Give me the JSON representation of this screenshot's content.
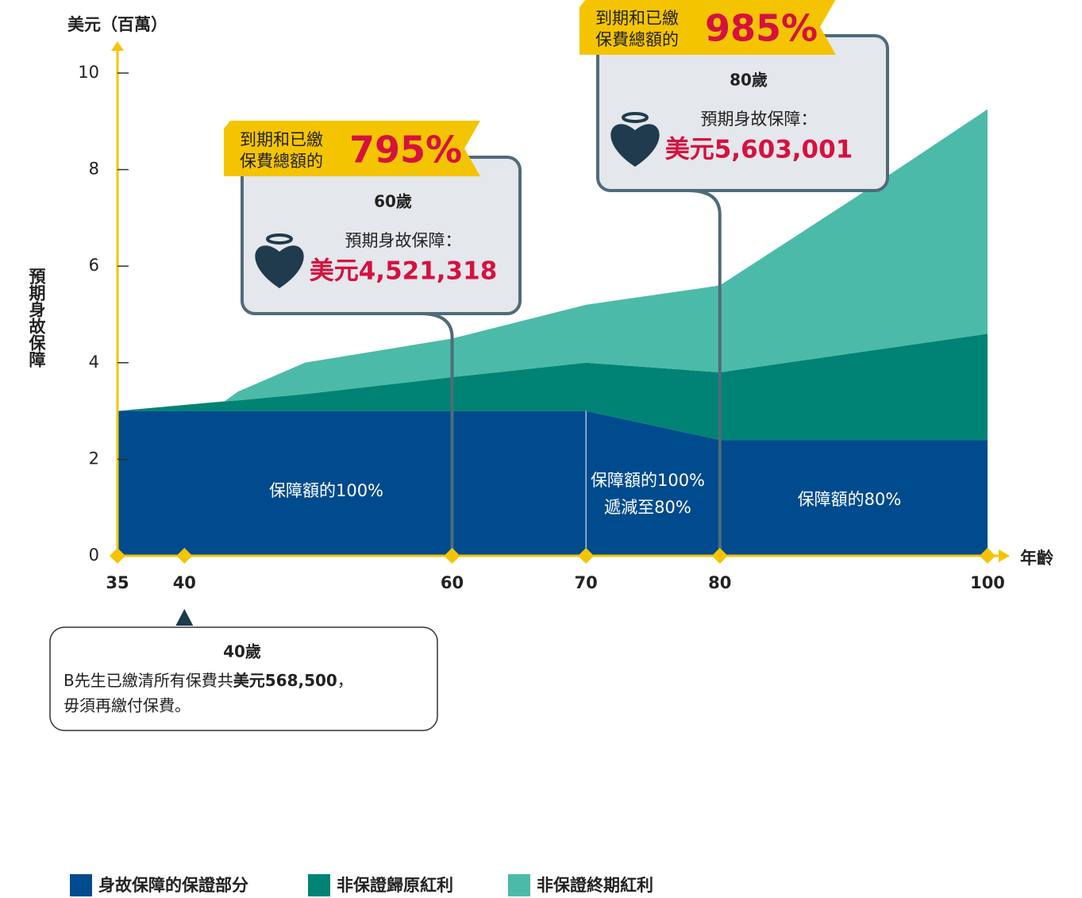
{
  "chart_data": {
    "type": "area",
    "stacked": true,
    "y_unit_label": "美元（百萬）",
    "ylabel": "預期身故保障",
    "xlabel": "年齡",
    "x": [
      35,
      43,
      44,
      49,
      60,
      70,
      80,
      90,
      100
    ],
    "series": [
      {
        "name": "身故保障的保證部分",
        "color": "#004b8d",
        "values": [
          3,
          3,
          3,
          3,
          3,
          3,
          2.4,
          2.4,
          2.4
        ]
      },
      {
        "name": "非保證歸原紅利",
        "color": "#008374",
        "values": [
          0,
          0.2,
          0.22,
          0.35,
          0.7,
          1,
          1.4,
          1.8,
          2.2
        ]
      },
      {
        "name": "非保證終期紅利",
        "color": "#4cbaa9",
        "values": [
          0,
          0,
          0.18,
          0.65,
          0.8,
          1.2,
          1.8,
          3.2,
          4.65
        ]
      }
    ],
    "xlim": [
      35,
      100
    ],
    "xticks": [
      35,
      40,
      60,
      70,
      80,
      100
    ],
    "ylim": [
      0,
      10
    ],
    "yticks": [
      0,
      2,
      4,
      6,
      8,
      10
    ],
    "area_labels": [
      [
        "保障額的100%"
      ],
      [
        "保障額的100%",
        "遞減至80%"
      ],
      [
        "保障額的80%"
      ]
    ],
    "callouts": [
      {
        "x": 60,
        "banner": [
          "到期和已繳",
          "保費總額的"
        ],
        "percent": "795%",
        "age": "60歲",
        "caption": "預期身故保障：",
        "amount": "美元4,521,318"
      },
      {
        "x": 80,
        "banner": [
          "到期和已繳",
          "保費總額的"
        ],
        "percent": "985%",
        "age": "80歲",
        "caption": "預期身故保障：",
        "amount": "美元5,603,001"
      }
    ],
    "note": {
      "age": "40歲",
      "line1": [
        "B先生已繳清所有保費共",
        "美元568,500",
        "，"
      ],
      "line2": "毋須再繳付保費。"
    }
  }
}
